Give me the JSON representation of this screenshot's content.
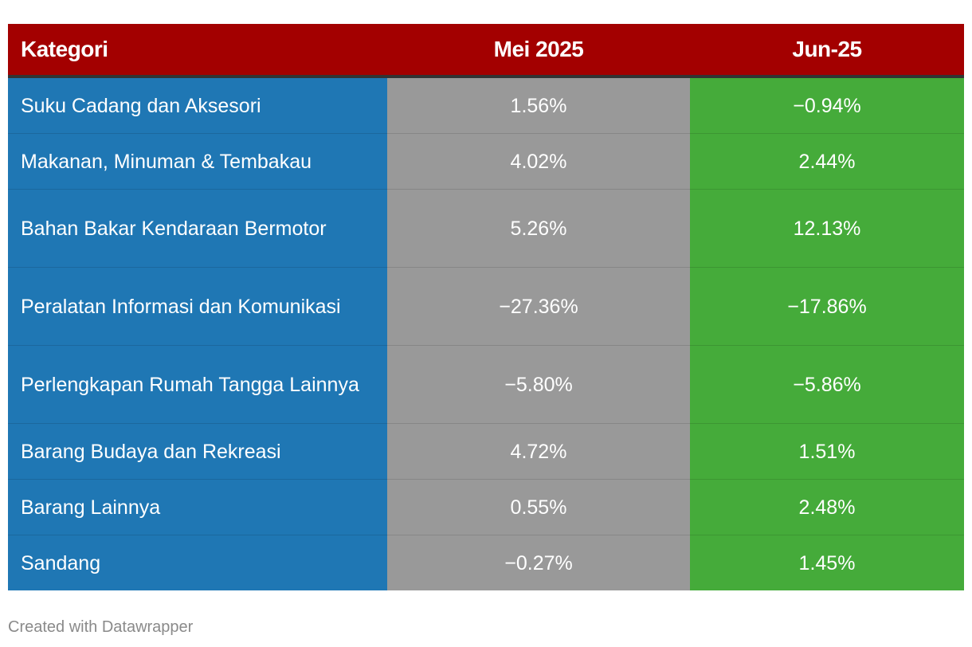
{
  "chart_data": {
    "type": "table",
    "columns": [
      "Kategori",
      "Mei 2025",
      "Jun-25"
    ],
    "rows": [
      {
        "kategori": "Suku Cadang dan Aksesori",
        "mei_2025": "1.56%",
        "jun_25": "−0.94%"
      },
      {
        "kategori": "Makanan, Minuman & Tembakau",
        "mei_2025": "4.02%",
        "jun_25": "2.44%"
      },
      {
        "kategori": "Bahan Bakar Kendaraan Bermotor",
        "mei_2025": "5.26%",
        "jun_25": "12.13%"
      },
      {
        "kategori": "Peralatan Informasi dan Komunikasi",
        "mei_2025": "−27.36%",
        "jun_25": "−17.86%"
      },
      {
        "kategori": "Perlengkapan Rumah Tangga Lainnya",
        "mei_2025": "−5.80%",
        "jun_25": "−5.86%"
      },
      {
        "kategori": "Barang Budaya dan Rekreasi",
        "mei_2025": "4.72%",
        "jun_25": "1.51%"
      },
      {
        "kategori": "Barang Lainnya",
        "mei_2025": "0.55%",
        "jun_25": "2.48%"
      },
      {
        "kategori": "Sandang",
        "mei_2025": "−0.27%",
        "jun_25": "1.45%"
      }
    ],
    "colors": {
      "header": "#a30000",
      "kategori_column": "#1f77b4",
      "mei_2025_column": "#999999",
      "jun_25_column": "#45ab3a"
    }
  },
  "footer": {
    "credit": "Created with Datawrapper"
  }
}
